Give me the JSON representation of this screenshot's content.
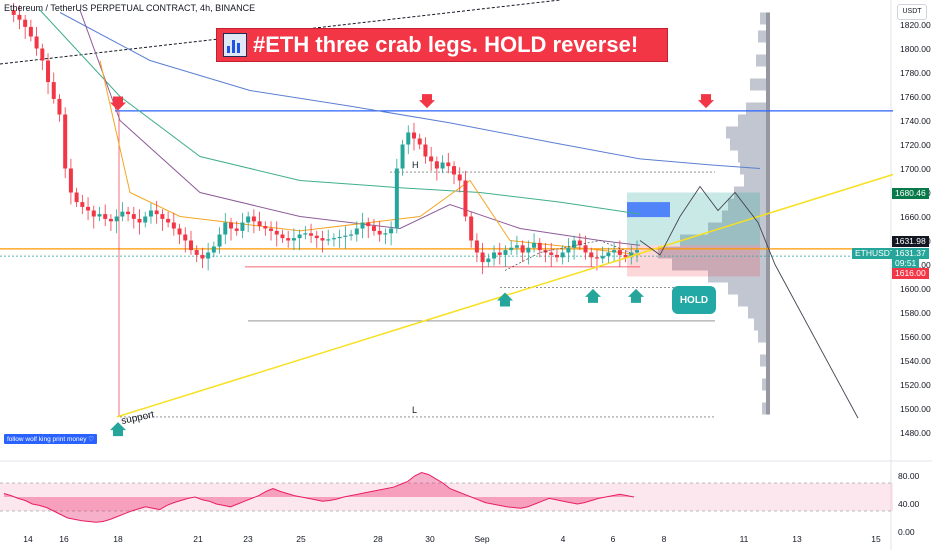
{
  "header": {
    "title": "Ethereum / TetherUS PERPETUAL CONTRACT, 4h, BINANCE"
  },
  "banner": {
    "text": "#ETH three crab legs. HOLD reverse!"
  },
  "note": "follow wolf king print money ♡",
  "labels": {
    "support": "support",
    "h": "H",
    "l": "L",
    "hold": "HOLD"
  },
  "price_axis": {
    "currency_button": "USDT",
    "ticks": [
      "1820.00",
      "1800.00",
      "1780.00",
      "1760.00",
      "1740.00",
      "1720.00",
      "1700.00",
      "1680.00",
      "1660.00",
      "1640.00",
      "1620.00",
      "1600.00",
      "1580.00",
      "1560.00",
      "1540.00",
      "1520.00",
      "1500.00",
      "1480.00"
    ],
    "pills": {
      "target": "1680.46",
      "symbol": "ETHUSDT.P",
      "last": "1631.98",
      "current": "1631.37",
      "countdown": "09:51",
      "stop": "1616.00"
    }
  },
  "rsi_axis": {
    "ticks": [
      "80.00",
      "40.00",
      "0.00"
    ]
  },
  "time_axis": {
    "ticks": [
      "14",
      "16",
      "18",
      "21",
      "23",
      "25",
      "28",
      "30",
      "Sep",
      "4",
      "6",
      "8",
      "11",
      "13",
      "15"
    ]
  },
  "colors": {
    "up": "#26a69a",
    "down": "#f23645",
    "banner": "#f23645",
    "yellow": "#f7e01d",
    "blue_line": "#2962ff",
    "orange_line": "#ff9800"
  },
  "chart_data": {
    "type": "candlestick",
    "symbol": "ETHUSDT.P",
    "timeframe": "4h",
    "ylim": [
      1470,
      1830
    ],
    "x_ticks": [
      "14",
      "16",
      "18",
      "21",
      "23",
      "25",
      "28",
      "30",
      "Sep",
      "4",
      "6",
      "8",
      "11",
      "13",
      "15"
    ],
    "horizontal_levels": [
      1748,
      1697,
      1633,
      1618,
      1573,
      1493
    ],
    "close_path": [
      1832,
      1828,
      1824,
      1818,
      1810,
      1800,
      1790,
      1772,
      1758,
      1745,
      1700,
      1680,
      1672,
      1668,
      1665,
      1660,
      1662,
      1658,
      1656,
      1660,
      1664,
      1662,
      1658,
      1655,
      1660,
      1665,
      1662,
      1658,
      1655,
      1650,
      1645,
      1640,
      1632,
      1628,
      1625,
      1630,
      1635,
      1645,
      1655,
      1650,
      1648,
      1655,
      1660,
      1656,
      1652,
      1650,
      1648,
      1645,
      1642,
      1640,
      1642,
      1645,
      1646,
      1644,
      1642,
      1640,
      1641,
      1642,
      1643,
      1644,
      1645,
      1650,
      1655,
      1652,
      1648,
      1645,
      1646,
      1650,
      1700,
      1720,
      1730,
      1725,
      1720,
      1710,
      1706,
      1700,
      1705,
      1702,
      1695,
      1690,
      1660,
      1640,
      1630,
      1622,
      1625,
      1630,
      1628,
      1632,
      1634,
      1636,
      1630,
      1634,
      1638,
      1632,
      1630,
      1628,
      1626,
      1630,
      1634,
      1640,
      1636,
      1630,
      1626,
      1625,
      1627,
      1630,
      1632,
      1628,
      1626,
      1630,
      1632
    ],
    "rsi": {
      "ylim": [
        0,
        100
      ],
      "levels": [
        70,
        30
      ],
      "values": [
        55,
        52,
        48,
        45,
        40,
        38,
        35,
        30,
        25,
        20,
        18,
        16,
        15,
        14,
        15,
        18,
        22,
        26,
        30,
        33,
        36,
        34,
        32,
        38,
        42,
        45,
        48,
        50,
        46,
        44,
        40,
        38,
        36,
        40,
        44,
        48,
        52,
        58,
        62,
        58,
        55,
        52,
        50,
        48,
        46,
        44,
        45,
        47,
        50,
        52,
        54,
        56,
        58,
        60,
        62,
        64,
        68,
        72,
        80,
        85,
        82,
        76,
        70,
        62,
        58,
        54,
        50,
        46,
        42,
        40,
        38,
        36,
        35,
        34,
        36,
        40,
        44,
        48,
        46,
        44,
        42,
        40,
        42,
        45,
        48,
        50,
        52,
        54,
        52,
        50
      ]
    },
    "annotations": [
      "H",
      "L",
      "support",
      "HOLD"
    ]
  }
}
